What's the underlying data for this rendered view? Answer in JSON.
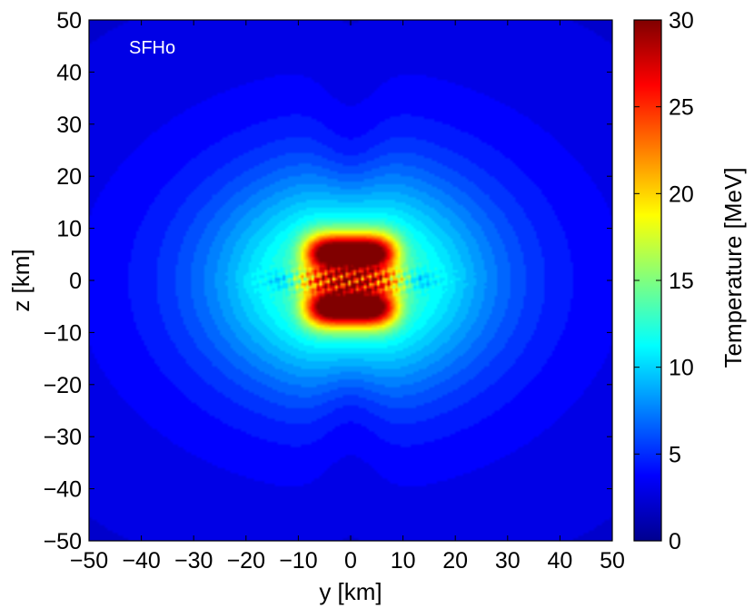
{
  "chart_data": {
    "type": "heatmap",
    "title": "",
    "annotation": "SFHo",
    "xlabel": "y [km]",
    "ylabel": "z [km]",
    "xlim": [
      -50,
      50
    ],
    "ylim": [
      -50,
      50
    ],
    "x_ticks": [
      -50,
      -40,
      -30,
      -20,
      -10,
      0,
      10,
      20,
      30,
      40,
      50
    ],
    "y_ticks": [
      -50,
      -40,
      -30,
      -20,
      -10,
      0,
      10,
      20,
      30,
      40,
      50
    ],
    "x_tick_labels": [
      "−50",
      "−40",
      "−30",
      "−20",
      "−10",
      "0",
      "10",
      "20",
      "30",
      "40",
      "50"
    ],
    "y_tick_labels": [
      "−50",
      "−40",
      "−30",
      "−20",
      "−10",
      "0",
      "10",
      "20",
      "30",
      "40",
      "50"
    ],
    "colorbar": {
      "label": "Temperature [MeV]",
      "range": [
        0,
        30
      ],
      "ticks": [
        0,
        5,
        10,
        15,
        20,
        25,
        30
      ],
      "tick_labels": [
        "0",
        "5",
        "10",
        "15",
        "20",
        "25",
        "30"
      ],
      "colormap": "jet"
    },
    "field": {
      "description_units": "MeV",
      "peak_value": 30,
      "hot_core_extent_y": [
        -8,
        8
      ],
      "hot_core_extent_z": [
        -8,
        8
      ],
      "warm_region_extent_y": [
        -18,
        18
      ],
      "warm_region_extent_z": [
        -12,
        12
      ],
      "background_value": 4
    }
  }
}
